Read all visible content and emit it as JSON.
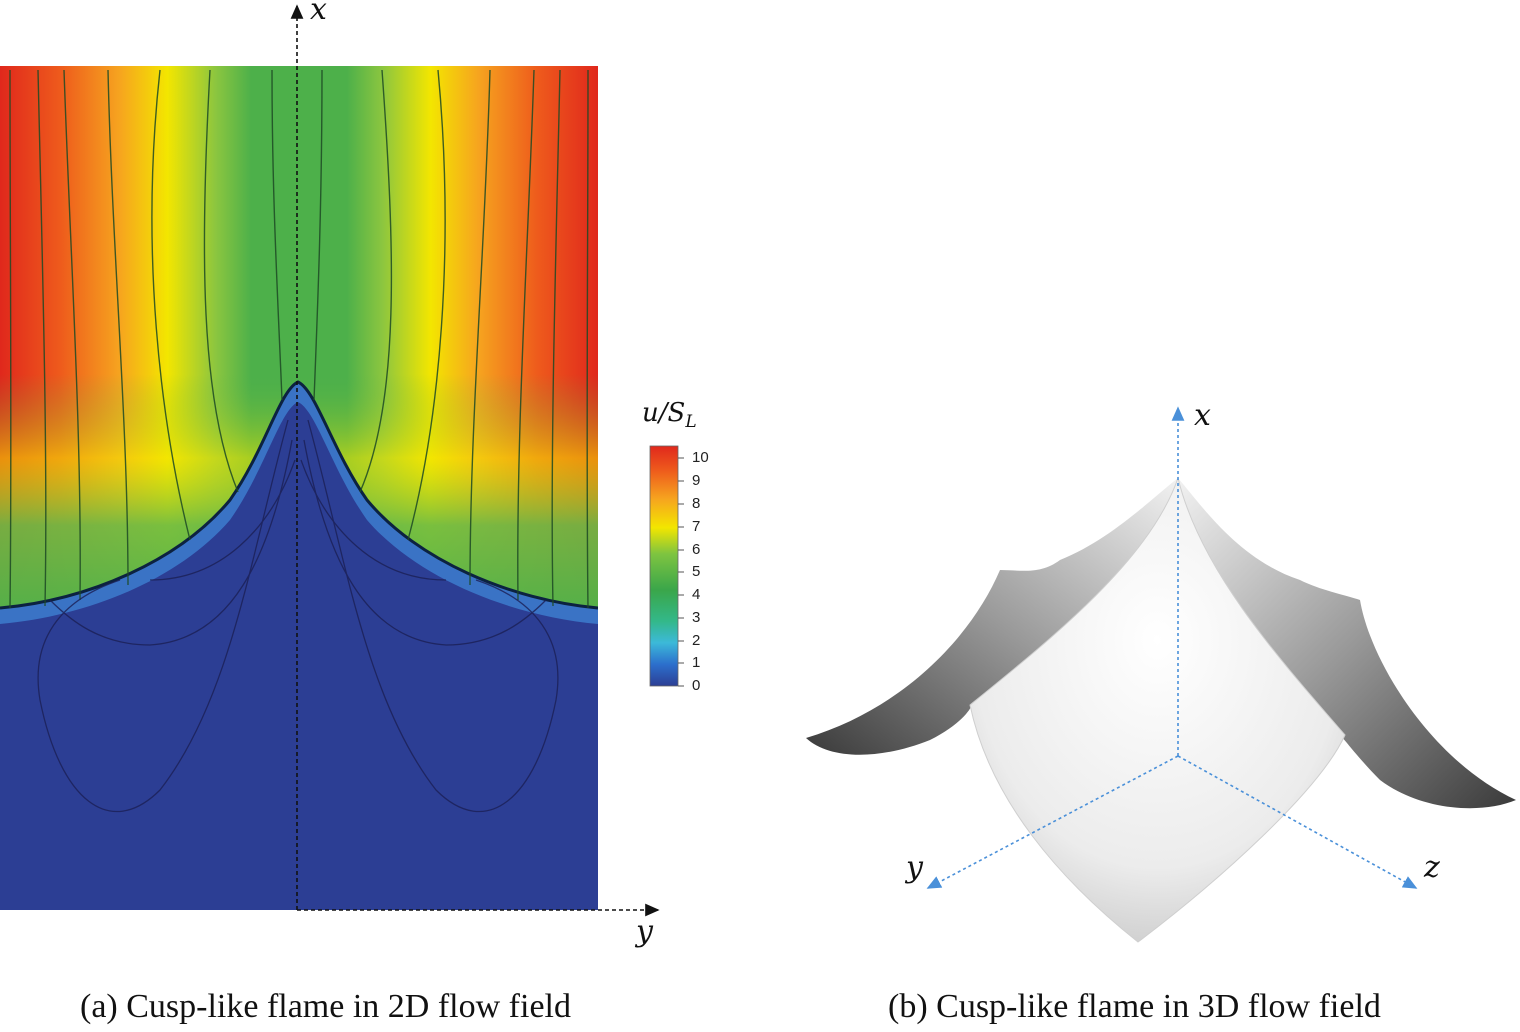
{
  "panel_a": {
    "caption": "(a) Cusp-like flame in 2D flow field",
    "axis_x_label": "x",
    "axis_y_label": "y",
    "colorbar": {
      "title": "u/S",
      "title_sub": "L",
      "ticks": [
        "10",
        "9",
        "8",
        "7",
        "6",
        "5",
        "4",
        "3",
        "2",
        "1",
        "0"
      ]
    }
  },
  "panel_b": {
    "caption": "(b) Cusp-like flame in 3D flow field",
    "axis_x_label": "x",
    "axis_y_label": "y",
    "axis_z_label": "z",
    "axis_color": "#4a90d9"
  },
  "palette": {
    "burnt": "#2c3e94",
    "green": "#4db04a",
    "yellow": "#f3e600",
    "orange": "#f39a1e",
    "red": "#e0281c"
  }
}
